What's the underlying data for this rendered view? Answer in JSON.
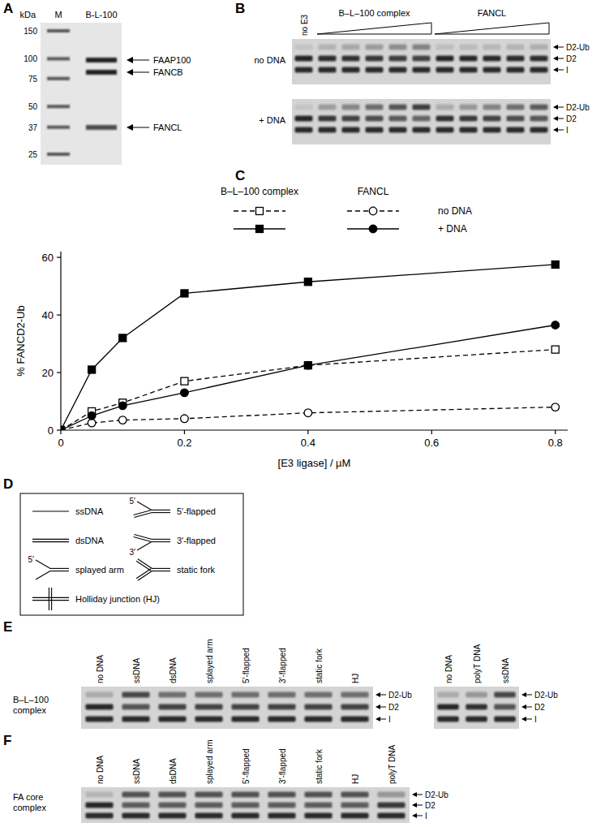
{
  "figure": {
    "A": {
      "panel": "A",
      "unit": "kDa",
      "lanes": [
        "M",
        "B-L-100"
      ],
      "markers": [
        150,
        100,
        75,
        50,
        37,
        25
      ],
      "bands": [
        "FAAP100",
        "FANCB",
        "FANCL"
      ]
    },
    "B": {
      "panel": "B",
      "control_lane": "no E3",
      "groups": [
        "B–L–100 complex",
        "FANCL"
      ],
      "rows": [
        "no DNA",
        "+ DNA"
      ],
      "band_labels": [
        "D2-Ub",
        "D2",
        "I"
      ]
    },
    "D": {
      "panel": "D",
      "items": [
        {
          "label": "ssDNA"
        },
        {
          "label": "5′-flapped",
          "end_label": "5′"
        },
        {
          "label": "dsDNA"
        },
        {
          "label": "3′-flapped",
          "end_label": "3′"
        },
        {
          "label": "splayed arm",
          "end_label": "5′"
        },
        {
          "label": "static fork"
        },
        {
          "label": "Holliday junction (HJ)"
        }
      ]
    },
    "E": {
      "panel": "E",
      "row_label": "B–L–100 complex",
      "lanes": [
        "no DNA",
        "ssDNA",
        "dsDNA",
        "splayed arm",
        "5′-flapped",
        "3′-flapped",
        "static fork",
        "HJ"
      ],
      "side_lanes": [
        "no DNA",
        "polyT DNA",
        "ssDNA"
      ],
      "band_labels": [
        "D2-Ub",
        "D2",
        "I"
      ]
    },
    "F": {
      "panel": "F",
      "row_label": "FA core complex",
      "lanes": [
        "no DNA",
        "ssDNA",
        "dsDNA",
        "splayed arm",
        "5′-flapped",
        "3′-flapped",
        "static fork",
        "HJ",
        "polyT DNA"
      ],
      "band_labels": [
        "D2-Ub",
        "D2",
        "I"
      ]
    }
  },
  "chart_data": {
    "type": "line",
    "panel": "C",
    "x_label": "[E3 ligase] / µM",
    "y_label": "% FANCD2-Ub",
    "x": [
      0,
      0.05,
      0.1,
      0.2,
      0.4,
      0.8
    ],
    "xlim": [
      0,
      0.82
    ],
    "xticks": [
      0,
      0.2,
      0.4,
      0.6,
      0.8
    ],
    "ylim": [
      0,
      62
    ],
    "yticks": [
      0,
      20,
      40,
      60
    ],
    "grid": false,
    "legend_columns": [
      "B–L–100 complex",
      "FANCL"
    ],
    "legend_rows": [
      "no DNA",
      "+ DNA"
    ],
    "series": [
      {
        "color": "#000000",
        "marker": "square-open",
        "line_style": "dashed",
        "values": [
          0,
          6.5,
          9.5,
          17,
          22.5,
          28
        ]
      },
      {
        "color": "#000000",
        "marker": "square",
        "line_style": "solid",
        "values": [
          0,
          21,
          32,
          47.5,
          51.5,
          57.5
        ]
      },
      {
        "color": "#000000",
        "marker": "circle-open",
        "line_style": "dashed",
        "values": [
          0,
          2.5,
          3.5,
          4,
          6,
          8
        ]
      },
      {
        "color": "#000000",
        "marker": "circle",
        "line_style": "solid",
        "values": [
          0,
          5,
          8.5,
          13,
          22.5,
          36.5
        ]
      }
    ]
  }
}
